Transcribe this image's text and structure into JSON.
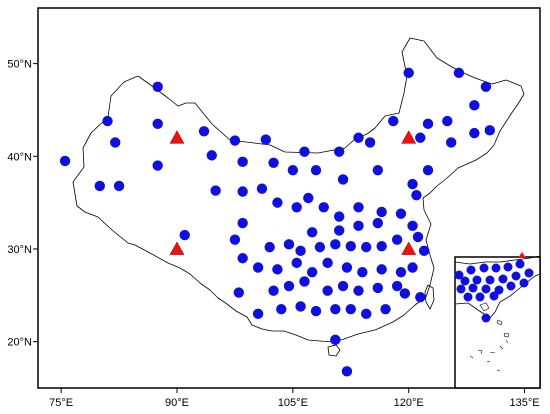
{
  "map": {
    "lon_range": [
      72,
      137
    ],
    "lat_range": [
      15,
      56
    ],
    "x_ticks": [
      {
        "lon": 75,
        "label": "75°E"
      },
      {
        "lon": 90,
        "label": "90°E"
      },
      {
        "lon": 105,
        "label": "105°E"
      },
      {
        "lon": 120,
        "label": "120°E"
      },
      {
        "lon": 135,
        "label": "135°E"
      }
    ],
    "y_ticks": [
      {
        "lat": 20,
        "label": "20°N"
      },
      {
        "lat": 30,
        "label": "30°N"
      },
      {
        "lat": 40,
        "label": "40°N"
      },
      {
        "lat": 50,
        "label": "50°N"
      }
    ],
    "colors": {
      "station": "#1010dd",
      "reference": "#ee1111",
      "border": "#000000",
      "frame": "#000000"
    },
    "reference_sites": [
      {
        "lon": 90,
        "lat": 42
      },
      {
        "lon": 120,
        "lat": 42
      },
      {
        "lon": 90,
        "lat": 30
      },
      {
        "lon": 120,
        "lat": 30
      }
    ],
    "stations": [
      [
        87.5,
        47.5
      ],
      [
        120,
        49
      ],
      [
        126.5,
        49
      ],
      [
        81,
        43.8
      ],
      [
        87.5,
        43.5
      ],
      [
        82,
        41.5
      ],
      [
        93.5,
        42.7
      ],
      [
        97.5,
        41.7
      ],
      [
        101.5,
        41.8
      ],
      [
        75.5,
        39.5
      ],
      [
        80,
        36.8
      ],
      [
        82.5,
        36.8
      ],
      [
        87.5,
        39
      ],
      [
        94.5,
        40.1
      ],
      [
        98.5,
        39.4
      ],
      [
        102.5,
        39.3
      ],
      [
        106.5,
        40.5
      ],
      [
        111,
        40.5
      ],
      [
        115,
        41.5
      ],
      [
        118,
        43.8
      ],
      [
        113.5,
        42
      ],
      [
        121.5,
        42
      ],
      [
        125.5,
        41.5
      ],
      [
        128.5,
        42.5
      ],
      [
        130.5,
        42.8
      ],
      [
        125,
        43.8
      ],
      [
        128.5,
        45.5
      ],
      [
        130,
        47.5
      ],
      [
        122.5,
        43.5
      ],
      [
        105,
        38.5
      ],
      [
        108,
        38.5
      ],
      [
        111.5,
        37.5
      ],
      [
        116,
        38.5
      ],
      [
        120.5,
        37
      ],
      [
        122.5,
        38.5
      ],
      [
        121,
        35.8
      ],
      [
        95,
        36.3
      ],
      [
        98.5,
        36.2
      ],
      [
        101,
        36.5
      ],
      [
        103,
        35
      ],
      [
        105.5,
        34.5
      ],
      [
        107,
        35.5
      ],
      [
        109,
        34.5
      ],
      [
        111,
        33.5
      ],
      [
        113.5,
        34.5
      ],
      [
        116.5,
        34
      ],
      [
        119,
        33.8
      ],
      [
        120.5,
        32.5
      ],
      [
        116,
        32.8
      ],
      [
        113.5,
        32.5
      ],
      [
        111,
        32
      ],
      [
        107.5,
        31.8
      ],
      [
        104.5,
        30.5
      ],
      [
        102,
        30.2
      ],
      [
        106,
        29.8
      ],
      [
        108.5,
        30.2
      ],
      [
        110.5,
        30.5
      ],
      [
        112.5,
        30.3
      ],
      [
        114.5,
        30.2
      ],
      [
        116.5,
        30.3
      ],
      [
        118.5,
        31
      ],
      [
        121.2,
        31.3
      ],
      [
        122,
        29.8
      ],
      [
        98.5,
        32.8
      ],
      [
        97.5,
        31
      ],
      [
        91,
        31.5
      ],
      [
        98.5,
        29
      ],
      [
        100.5,
        28
      ],
      [
        103,
        27.8
      ],
      [
        105.5,
        28.5
      ],
      [
        107.5,
        27.5
      ],
      [
        109.5,
        28.5
      ],
      [
        112,
        28
      ],
      [
        114,
        27.5
      ],
      [
        116.5,
        27.8
      ],
      [
        119,
        27.5
      ],
      [
        120.5,
        28
      ],
      [
        98,
        25.3
      ],
      [
        102.5,
        25.5
      ],
      [
        104.5,
        26
      ],
      [
        106.5,
        26.5
      ],
      [
        109.5,
        25.5
      ],
      [
        111.5,
        26
      ],
      [
        113.5,
        25.5
      ],
      [
        116,
        25.8
      ],
      [
        118.5,
        26
      ],
      [
        119.5,
        25.2
      ],
      [
        121.5,
        24.8
      ],
      [
        100.5,
        23
      ],
      [
        103.5,
        23.5
      ],
      [
        106,
        23.8
      ],
      [
        108,
        23.3
      ],
      [
        110.5,
        23.5
      ],
      [
        112.5,
        23.5
      ],
      [
        114.5,
        23
      ],
      [
        117,
        23.5
      ],
      [
        110.5,
        20.2
      ],
      [
        112,
        16.8
      ]
    ],
    "inset": {
      "stations": [
        [
          459,
          275
        ],
        [
          471,
          270
        ],
        [
          484,
          268
        ],
        [
          496,
          268
        ],
        [
          508,
          267
        ],
        [
          520,
          264
        ],
        [
          465,
          281
        ],
        [
          477,
          280
        ],
        [
          490,
          280
        ],
        [
          503,
          279
        ],
        [
          516,
          276
        ],
        [
          529,
          273
        ],
        [
          461,
          289
        ],
        [
          473,
          288
        ],
        [
          486,
          289
        ],
        [
          499,
          290
        ],
        [
          511,
          286
        ],
        [
          524,
          283
        ],
        [
          468,
          297
        ],
        [
          480,
          297
        ],
        [
          494,
          296
        ],
        [
          486,
          318
        ]
      ]
    }
  }
}
